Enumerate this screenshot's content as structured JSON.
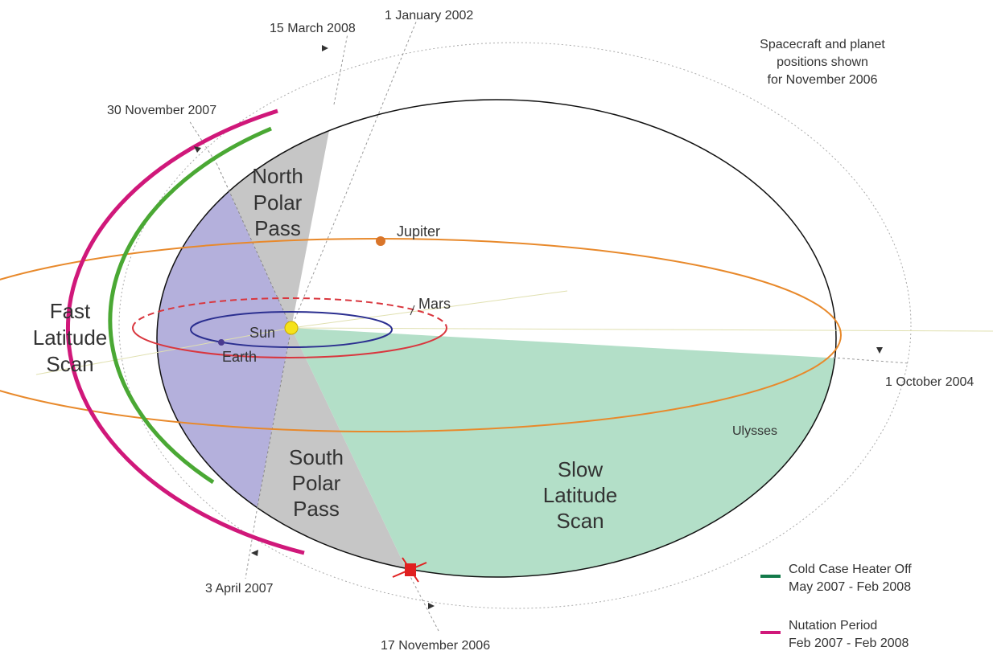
{
  "title_note": [
    "Spacecraft and planet",
    "positions shown",
    "for November 2006"
  ],
  "dates": {
    "mar2008": "15 March 2008",
    "jan2002": "1 January 2002",
    "nov2007": "30 November 2007",
    "oct2004": "1 October 2004",
    "apr2007": "3 April 2007",
    "nov2006": "17 November 2006"
  },
  "regions": {
    "north": [
      "North",
      "Polar",
      "Pass"
    ],
    "fast": [
      "Fast",
      "Latitude",
      "Scan"
    ],
    "south": [
      "South",
      "Polar",
      "Pass"
    ],
    "slow": [
      "Slow",
      "Latitude",
      "Scan"
    ]
  },
  "bodies": {
    "jupiter": "Jupiter",
    "mars": "Mars",
    "sun": "Sun",
    "earth": "Earth",
    "ulysses": "Ulysses"
  },
  "legend": [
    {
      "label": "Cold Case Heater Off",
      "period": "May 2007 - Feb 2008"
    },
    {
      "label": "Nutation Period",
      "period": "Feb 2007 - Feb 2008"
    }
  ]
}
